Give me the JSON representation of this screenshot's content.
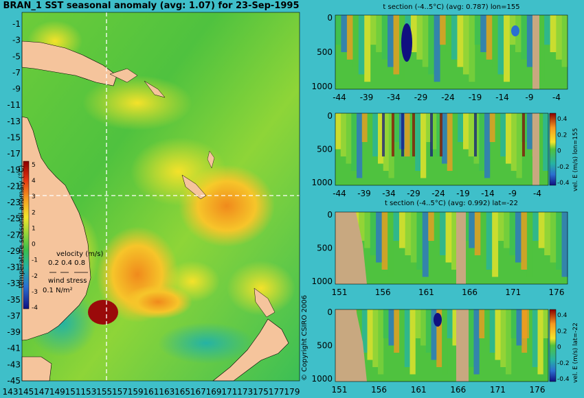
{
  "map": {
    "title": "BRAN_1  SST seasonal anomaly  (avg: 1.07) for 23-Sep-1995",
    "lat_ticks": [
      "-1",
      "-3",
      "-5",
      "-7",
      "-9",
      "-11",
      "-13",
      "-15",
      "-17",
      "-19",
      "-21",
      "-23",
      "-25",
      "-27",
      "-29",
      "-31",
      "-33",
      "-35",
      "-37",
      "-39",
      "-41",
      "-43",
      "-45"
    ],
    "lon_ticks": [
      "143",
      "145",
      "147",
      "149",
      "151",
      "153",
      "155",
      "157",
      "159",
      "161",
      "163",
      "165",
      "167",
      "169",
      "171",
      "173",
      "175",
      "177",
      "179"
    ],
    "colorbar": {
      "label": "temperature seasonal anomaly (°C)",
      "ticks": [
        "5",
        "4",
        "3",
        "2",
        "1",
        "0",
        "-1",
        "-2",
        "-3",
        "-4"
      ]
    },
    "velocity_legend": {
      "title": "velocity (m/s)",
      "values": "0.2 0.4 0.8"
    },
    "wind_legend": {
      "title": "wind stress",
      "value": "0.1 N/m²"
    },
    "copyright": "© Copyright CSIRO 2006",
    "colors": {
      "land": "#f5c49c",
      "sea_base": "#7fd13b"
    }
  },
  "panels": [
    {
      "title": "t section (-4..5°C) (avg: 0.787) lon=155",
      "y_ticks": [
        "0",
        "500",
        "1000"
      ],
      "x_ticks": [
        "-44",
        "-39",
        "-34",
        "-29",
        "-24",
        "-19",
        "-14",
        "-9",
        "-4"
      ]
    },
    {
      "title": "",
      "y_ticks": [
        "0",
        "500",
        "1000"
      ],
      "x_ticks": [
        "-44",
        "-39",
        "-34",
        "-29",
        "-24",
        "-19",
        "-14",
        "-9",
        "-4"
      ],
      "colorbar_ticks": [
        "0.4",
        "0.2",
        "0",
        "-0.2",
        "-0.4"
      ],
      "side_label": "vel. E (m/s) lon=155"
    },
    {
      "title": "t section (-4..5°C) (avg: 0.992) lat=-22",
      "y_ticks": [
        "0",
        "500",
        "1000"
      ],
      "x_ticks": [
        "151",
        "156",
        "161",
        "166",
        "171",
        "176"
      ]
    },
    {
      "title": "",
      "y_ticks": [
        "0",
        "500",
        "1000"
      ],
      "x_ticks": [
        "151",
        "156",
        "161",
        "166",
        "171",
        "176"
      ],
      "colorbar_ticks": [
        "0.4",
        "0.2",
        "0",
        "-0.2",
        "-0.4"
      ],
      "side_label": "vel. E (m/s) lat=-22"
    }
  ]
}
